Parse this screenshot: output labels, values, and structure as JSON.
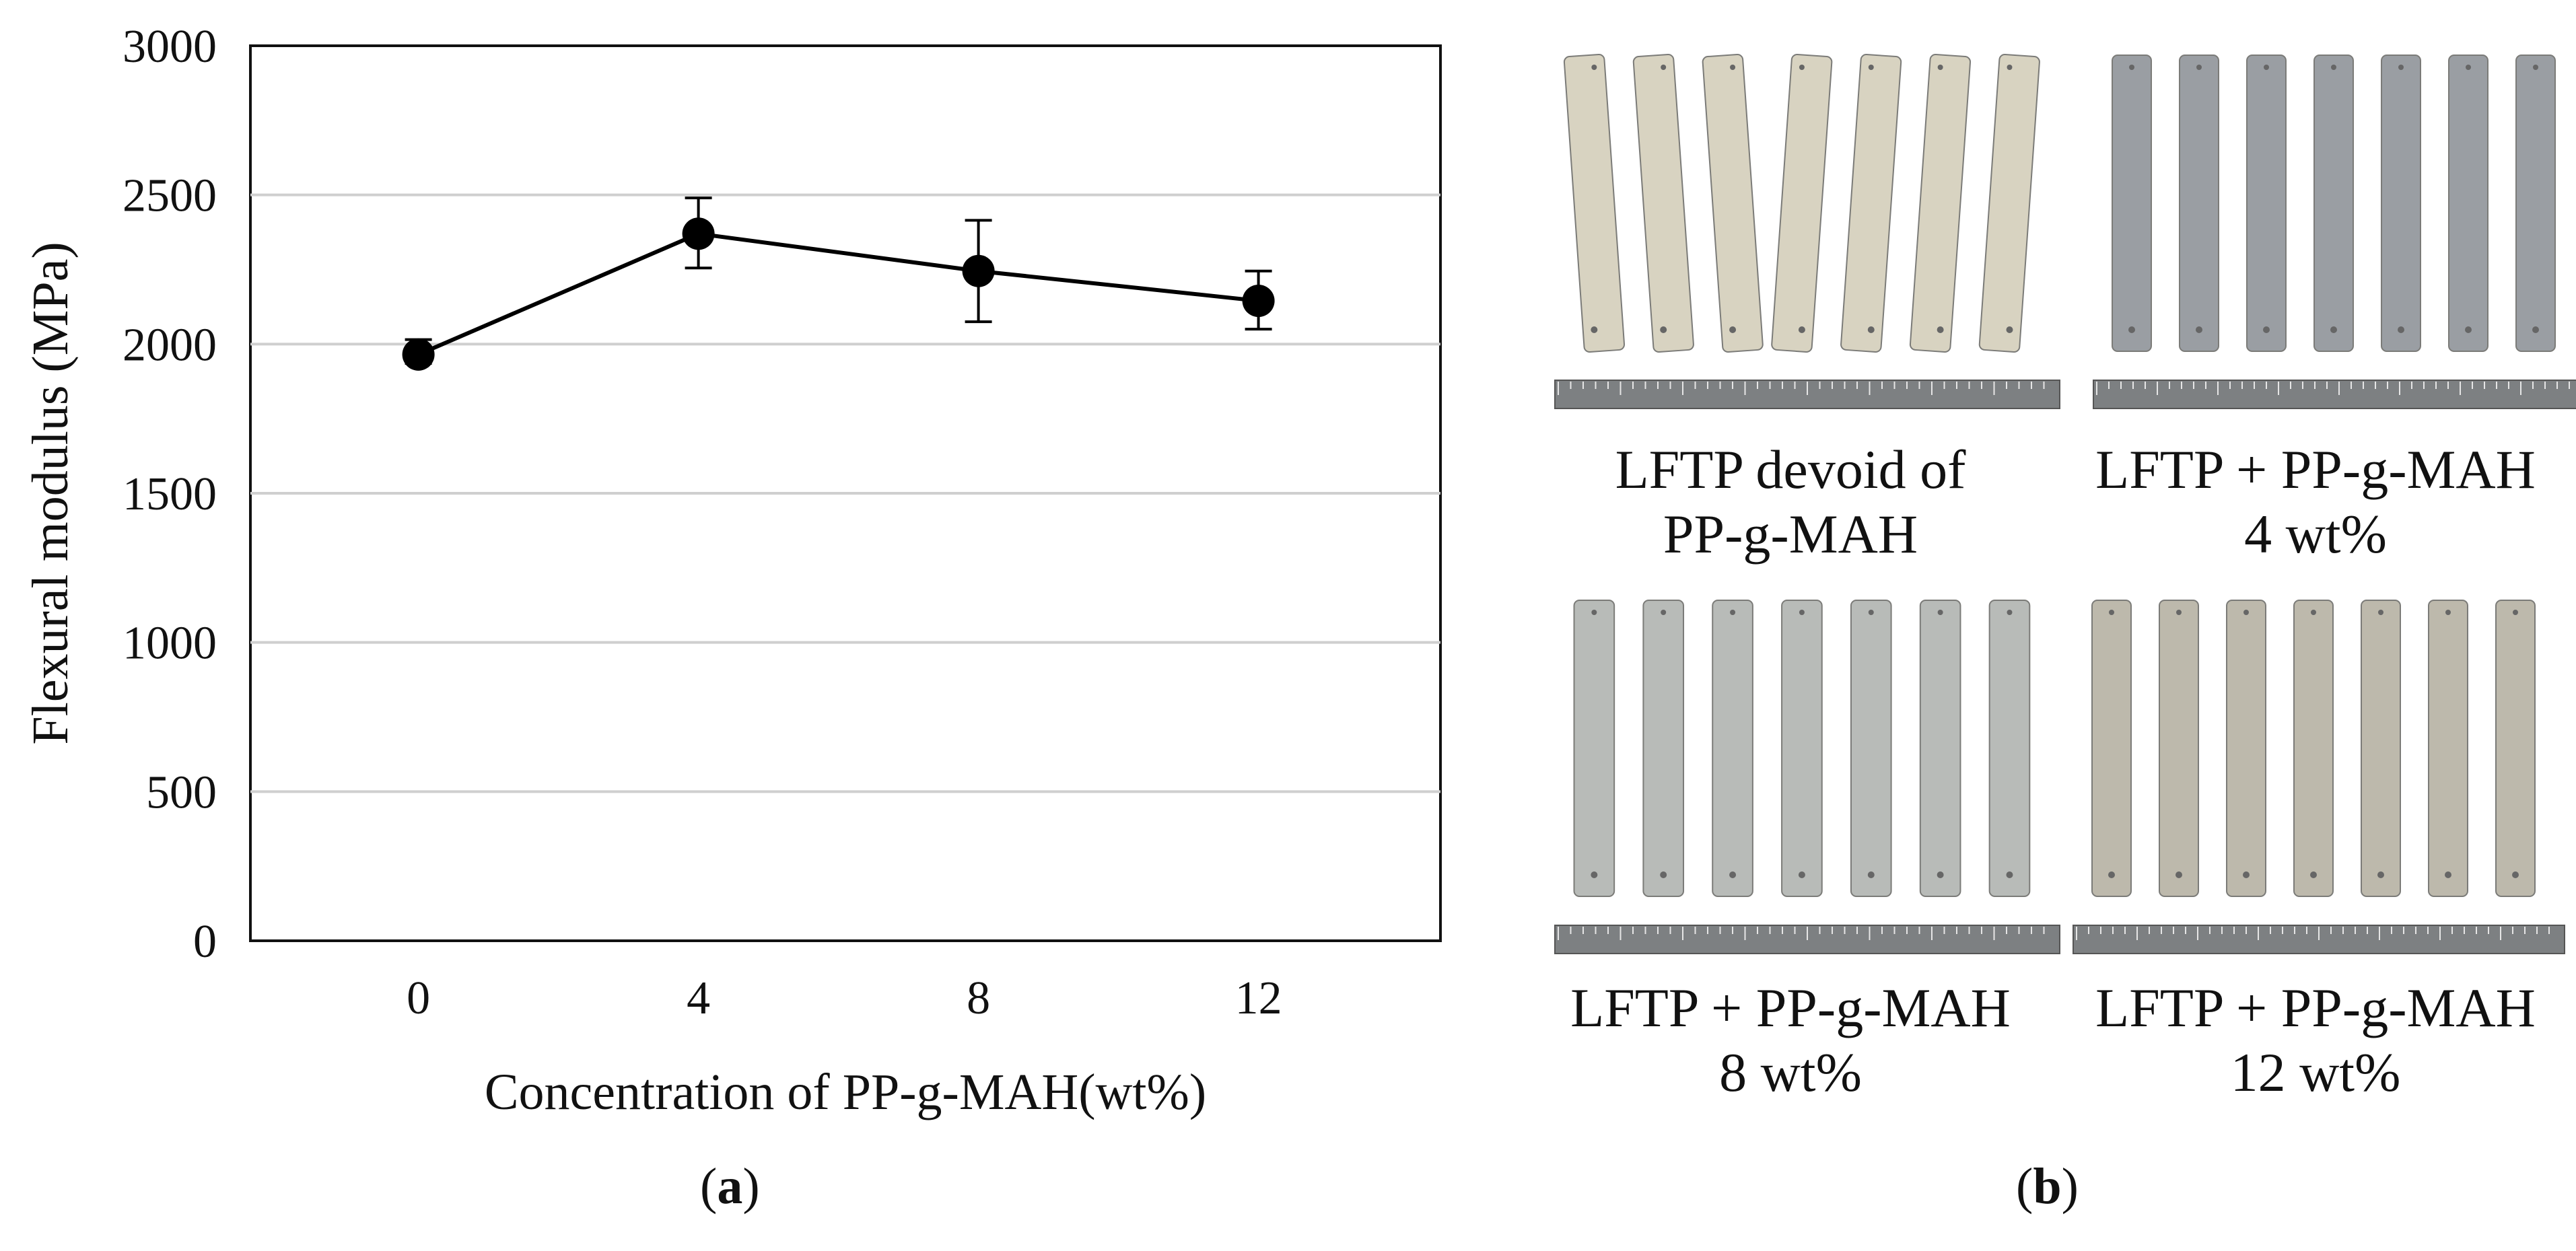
{
  "chart_data": {
    "type": "line",
    "title": "",
    "xlabel": "Concentration of PP-g-MAH(wt%)",
    "ylabel": "Flexural modulus (MPa)",
    "categories": [
      "0",
      "4",
      "8",
      "12"
    ],
    "x": [
      0,
      4,
      8,
      12
    ],
    "series": [
      {
        "name": "Flexural modulus",
        "values": [
          1965,
          2370,
          2245,
          2145
        ],
        "err_low": [
          1935,
          2255,
          2075,
          2050
        ],
        "err_high": [
          2015,
          2490,
          2415,
          2245
        ]
      }
    ],
    "yticks": [
      0,
      500,
      1000,
      1500,
      2000,
      2500,
      3000
    ],
    "ylim": [
      0,
      3000
    ],
    "grid": true,
    "legend": "none"
  },
  "panels": {
    "a_label": "a",
    "b_label": "b"
  },
  "photos": [
    {
      "caption_line1": "LFTP devoid of",
      "caption_line2": "PP-g-MAH",
      "tint": "#d8d3c1",
      "bars": 7
    },
    {
      "caption_line1": "LFTP + PP-g-MAH",
      "caption_line2": "4 wt%",
      "tint": "#9a9ea3",
      "bars": 7
    },
    {
      "caption_line1": "LFTP + PP-g-MAH",
      "caption_line2": "8 wt%",
      "tint": "#b8bbb8",
      "bars": 7
    },
    {
      "caption_line1": "LFTP + PP-g-MAH",
      "caption_line2": "12 wt%",
      "tint": "#bdb9ac",
      "bars": 7
    }
  ],
  "colors": {
    "line": "#000000",
    "grid": "#cfcfcf",
    "ruler": "#7d8082"
  }
}
